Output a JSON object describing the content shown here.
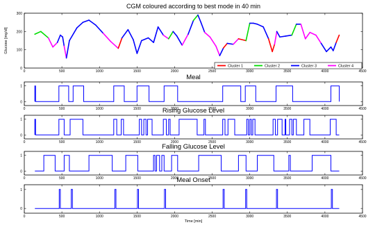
{
  "chart_data": [
    {
      "type": "line",
      "title": "CGM coloured according to best mode in 40 min",
      "xlabel": "",
      "ylabel": "Glucose [mg/dl]",
      "xlim": [
        0,
        4500
      ],
      "ylim": [
        0,
        300
      ],
      "x_ticks": [
        "0",
        "500",
        "1000",
        "1500",
        "2000",
        "2500",
        "3000",
        "3500",
        "4000",
        "4500"
      ],
      "y_ticks": [
        "0",
        "100",
        "200",
        "300"
      ],
      "legend": {
        "placement": "bottom-right",
        "entries": [
          {
            "name": "Cluster 1",
            "color": "#ff0000"
          },
          {
            "name": "Cluster 2",
            "color": "#00dd00"
          },
          {
            "name": "Cluster 3",
            "color": "#0000ff"
          },
          {
            "name": "Cluster 4",
            "color": "#ff00ff"
          }
        ]
      },
      "curve": {
        "x": [
          140,
          220,
          320,
          380,
          440,
          480,
          510,
          530,
          560,
          600,
          700,
          780,
          860,
          950,
          1050,
          1150,
          1250,
          1300,
          1380,
          1450,
          1500,
          1560,
          1650,
          1720,
          1780,
          1850,
          1920,
          1980,
          2030,
          2100,
          2180,
          2250,
          2310,
          2350,
          2400,
          2470,
          2550,
          2600,
          2650,
          2700,
          2780,
          2850,
          2950,
          3000,
          3050,
          3100,
          3180,
          3250,
          3300,
          3330,
          3360,
          3400,
          3480,
          3560,
          3620,
          3680,
          3740,
          3800,
          3880,
          3950,
          4020,
          4080,
          4110,
          4150,
          4190
        ],
        "y": [
          185,
          200,
          165,
          115,
          140,
          180,
          170,
          120,
          55,
          150,
          220,
          250,
          262,
          235,
          190,
          145,
          108,
          165,
          210,
          155,
          80,
          150,
          165,
          140,
          225,
          180,
          160,
          200,
          175,
          125,
          185,
          260,
          290,
          250,
          195,
          170,
          120,
          68,
          110,
          135,
          130,
          160,
          150,
          245,
          245,
          240,
          225,
          160,
          90,
          130,
          200,
          170,
          175,
          180,
          240,
          240,
          160,
          195,
          180,
          135,
          90,
          115,
          95,
          140,
          180
        ],
        "cluster": [
          2,
          2,
          4,
          4,
          3,
          3,
          3,
          4,
          3,
          3,
          3,
          3,
          3,
          3,
          4,
          4,
          1,
          3,
          3,
          3,
          3,
          3,
          3,
          3,
          3,
          4,
          2,
          3,
          3,
          4,
          3,
          2,
          3,
          3,
          4,
          4,
          4,
          3,
          1,
          3,
          4,
          1,
          2,
          3,
          3,
          3,
          3,
          1,
          1,
          4,
          3,
          3,
          3,
          2,
          3,
          4,
          4,
          4,
          4,
          3,
          3,
          3,
          3,
          1,
          1
        ]
      }
    },
    {
      "type": "line",
      "title": "Meal",
      "ylim": [
        -0.25,
        1.25
      ],
      "x_ticks": [
        "0",
        "500",
        "1000",
        "1500",
        "2000",
        "2500",
        "3000",
        "3500",
        "4000",
        "4500"
      ],
      "y_ticks": [
        "0",
        "1"
      ],
      "xlim": [
        0,
        4500
      ],
      "intervals": [
        [
          100,
          150
        ],
        [
          460,
          590
        ],
        [
          650,
          790
        ],
        [
          1190,
          1330
        ],
        [
          1500,
          1660
        ],
        [
          1860,
          2040
        ],
        [
          2640,
          2880
        ],
        [
          2940,
          3080
        ],
        [
          3350,
          3570
        ],
        [
          4080,
          4250
        ]
      ],
      "x_end": 4190
    },
    {
      "type": "line",
      "title": "Rising Glucose Level",
      "ylim": [
        -0.25,
        1.25
      ],
      "x_ticks": [
        "0",
        "500",
        "1000",
        "1500",
        "2000",
        "2500",
        "3000",
        "3500",
        "4000",
        "4500"
      ],
      "y_ticks": [
        "0",
        "1"
      ],
      "xlim": [
        0,
        4500
      ],
      "intervals": [
        [
          100,
          150
        ],
        [
          460,
          530
        ],
        [
          610,
          780
        ],
        [
          1190,
          1230
        ],
        [
          1290,
          1320
        ],
        [
          1530,
          1560
        ],
        [
          1590,
          1620
        ],
        [
          1640,
          1700
        ],
        [
          1850,
          1890
        ],
        [
          1920,
          1940
        ],
        [
          2060,
          2300
        ],
        [
          2390,
          2410
        ],
        [
          2640,
          2670
        ],
        [
          2710,
          2800
        ],
        [
          2960,
          2980
        ],
        [
          3000,
          3020
        ],
        [
          3040,
          3070
        ],
        [
          3310,
          3340
        ],
        [
          3370,
          3430
        ],
        [
          3470,
          3480
        ],
        [
          3530,
          3560
        ],
        [
          3580,
          3620
        ],
        [
          3720,
          3800
        ],
        [
          4070,
          4150
        ]
      ],
      "x_end": 4190
    },
    {
      "type": "line",
      "title": "Falling Glucose Level",
      "ylim": [
        -0.25,
        1.25
      ],
      "x_ticks": [
        "0",
        "500",
        "1000",
        "1500",
        "2000",
        "2500",
        "3000",
        "3500",
        "4000",
        "4500"
      ],
      "y_ticks": [
        "0",
        "1"
      ],
      "xlim": [
        0,
        4500
      ],
      "intervals": [
        [
          260,
          410
        ],
        [
          530,
          600
        ],
        [
          860,
          1170
        ],
        [
          1350,
          1510
        ],
        [
          1720,
          1740
        ],
        [
          1760,
          1800
        ],
        [
          1830,
          1860
        ],
        [
          1960,
          2040
        ],
        [
          2320,
          2620
        ],
        [
          2850,
          2950
        ],
        [
          3100,
          3320
        ],
        [
          3520,
          3540
        ],
        [
          3830,
          4080
        ]
      ],
      "x_end": 4190
    },
    {
      "type": "line",
      "title": "Meal Onset",
      "xlabel": "Time [min]",
      "ylim": [
        -0.25,
        1.25
      ],
      "x_ticks": [
        "0",
        "500",
        "1000",
        "1500",
        "2000",
        "2500",
        "3000",
        "3500",
        "4000",
        "4500"
      ],
      "y_ticks": [
        "0",
        "1"
      ],
      "xlim": [
        0,
        4500
      ],
      "intervals": [
        [
          465,
          480
        ],
        [
          625,
          640
        ],
        [
          1205,
          1220
        ],
        [
          1505,
          1520
        ],
        [
          1865,
          1880
        ],
        [
          2645,
          2660
        ],
        [
          2945,
          2960
        ],
        [
          3355,
          3370
        ],
        [
          4085,
          4100
        ]
      ],
      "x_end": 4190
    }
  ]
}
